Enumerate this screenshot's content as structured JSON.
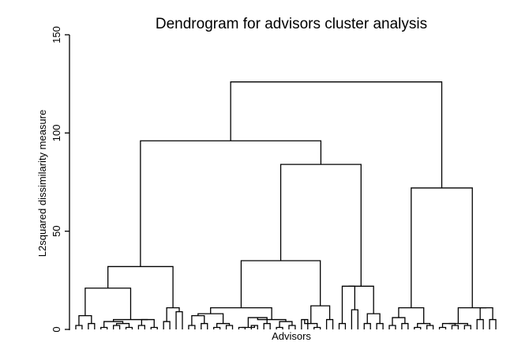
{
  "chart_data": {
    "type": "dendrogram",
    "title": "Dendrogram for advisors cluster analysis",
    "xlabel": "Advisors",
    "ylabel": "L2squared dissimilarity measure",
    "ylim": [
      0,
      150
    ],
    "yticks": [
      0,
      50,
      100,
      150
    ],
    "grid": false,
    "leaf_count": 68,
    "merges": [
      {
        "id": "a1",
        "children": [
          "L0",
          "L1"
        ],
        "height": 2
      },
      {
        "id": "a2",
        "children": [
          "L2",
          "L3"
        ],
        "height": 3
      },
      {
        "id": "a3",
        "children": [
          "a1",
          "a2"
        ],
        "height": 7
      },
      {
        "id": "b1",
        "children": [
          "L4",
          "L5"
        ],
        "height": 1
      },
      {
        "id": "b2",
        "children": [
          "L6",
          "L7"
        ],
        "height": 2
      },
      {
        "id": "b3",
        "children": [
          "L8",
          "L9"
        ],
        "height": 1
      },
      {
        "id": "b4",
        "children": [
          "b2",
          "b3"
        ],
        "height": 3
      },
      {
        "id": "b5",
        "children": [
          "b1",
          "b4"
        ],
        "height": 4
      },
      {
        "id": "c1",
        "children": [
          "L10",
          "L11"
        ],
        "height": 2
      },
      {
        "id": "c2",
        "children": [
          "L12",
          "L13"
        ],
        "height": 1
      },
      {
        "id": "c3",
        "children": [
          "c1",
          "c2"
        ],
        "height": 5
      },
      {
        "id": "d1",
        "children": [
          "b5",
          "c3"
        ],
        "height": 5
      },
      {
        "id": "e1",
        "children": [
          "L14",
          "L15"
        ],
        "height": 4
      },
      {
        "id": "e2",
        "children": [
          "L16",
          "L17"
        ],
        "height": 9
      },
      {
        "id": "e3",
        "children": [
          "e1",
          "e2"
        ],
        "height": 11
      },
      {
        "id": "f1",
        "children": [
          "a3",
          "d1"
        ],
        "height": 21
      },
      {
        "id": "f2",
        "children": [
          "f1",
          "e3"
        ],
        "height": 32
      },
      {
        "id": "g1",
        "children": [
          "L18",
          "L19"
        ],
        "height": 2
      },
      {
        "id": "g2",
        "children": [
          "L20",
          "L21"
        ],
        "height": 3
      },
      {
        "id": "g3",
        "children": [
          "g1",
          "g2"
        ],
        "height": 7
      },
      {
        "id": "g4",
        "children": [
          "L22",
          "L23"
        ],
        "height": 1
      },
      {
        "id": "g5",
        "children": [
          "L24",
          "L25"
        ],
        "height": 2
      },
      {
        "id": "g6",
        "children": [
          "g4",
          "g5"
        ],
        "height": 3
      },
      {
        "id": "g7",
        "children": [
          "g3",
          "g6"
        ],
        "height": 8
      },
      {
        "id": "h1",
        "children": [
          "L26",
          "L27"
        ],
        "height": 1
      },
      {
        "id": "h2",
        "children": [
          "L28",
          "L29"
        ],
        "height": 2
      },
      {
        "id": "h3",
        "children": [
          "h1",
          "h2"
        ],
        "height": 1
      },
      {
        "id": "h4",
        "children": [
          "L30",
          "L31"
        ],
        "height": 3
      },
      {
        "id": "h5",
        "children": [
          "h3",
          "h4"
        ],
        "height": 6
      },
      {
        "id": "i1",
        "children": [
          "L32",
          "L33"
        ],
        "height": 1
      },
      {
        "id": "i2",
        "children": [
          "L34",
          "L35"
        ],
        "height": 2
      },
      {
        "id": "i3",
        "children": [
          "i1",
          "i2"
        ],
        "height": 4
      },
      {
        "id": "i4",
        "children": [
          "h5",
          "i3"
        ],
        "height": 5
      },
      {
        "id": "j1",
        "children": [
          "g7",
          "i4"
        ],
        "height": 11
      },
      {
        "id": "k1",
        "children": [
          "L36",
          "L37"
        ],
        "height": 5
      },
      {
        "id": "k2",
        "children": [
          "L38",
          "L39"
        ],
        "height": 1
      },
      {
        "id": "k3",
        "children": [
          "k1",
          "k2"
        ],
        "height": 3
      },
      {
        "id": "k4",
        "children": [
          "L40",
          "L41"
        ],
        "height": 5
      },
      {
        "id": "k5",
        "children": [
          "k3",
          "k4"
        ],
        "height": 12
      },
      {
        "id": "m1",
        "children": [
          "j1",
          "k5"
        ],
        "height": 35
      },
      {
        "id": "n1",
        "children": [
          "L42",
          "L43"
        ],
        "height": 3
      },
      {
        "id": "n2",
        "children": [
          "L44",
          "L45"
        ],
        "height": 10
      },
      {
        "id": "n3",
        "children": [
          "n1",
          "n2"
        ],
        "height": 22
      },
      {
        "id": "n4",
        "children": [
          "L46",
          "L47"
        ],
        "height": 3
      },
      {
        "id": "n5",
        "children": [
          "L48",
          "L49"
        ],
        "height": 3
      },
      {
        "id": "n6",
        "children": [
          "n4",
          "n5"
        ],
        "height": 8
      },
      {
        "id": "n7",
        "children": [
          "n3",
          "n6"
        ],
        "height": 22
      },
      {
        "id": "p1",
        "children": [
          "m1",
          "n7"
        ],
        "height": 84
      },
      {
        "id": "q1",
        "children": [
          "f2",
          "p1"
        ],
        "height": 96
      },
      {
        "id": "r1",
        "children": [
          "L50",
          "L51"
        ],
        "height": 2
      },
      {
        "id": "r2",
        "children": [
          "L52",
          "L53"
        ],
        "height": 3
      },
      {
        "id": "r3",
        "children": [
          "r1",
          "r2"
        ],
        "height": 6
      },
      {
        "id": "r4",
        "children": [
          "L54",
          "L55"
        ],
        "height": 1
      },
      {
        "id": "r5",
        "children": [
          "L56",
          "L57"
        ],
        "height": 2
      },
      {
        "id": "r6",
        "children": [
          "r4",
          "r5"
        ],
        "height": 3
      },
      {
        "id": "r7",
        "children": [
          "r3",
          "r6"
        ],
        "height": 11
      },
      {
        "id": "s1",
        "children": [
          "L58",
          "L59"
        ],
        "height": 1
      },
      {
        "id": "s2",
        "children": [
          "L60",
          "L61"
        ],
        "height": 2
      },
      {
        "id": "s3",
        "children": [
          "s1",
          "s2"
        ],
        "height": 3
      },
      {
        "id": "s4",
        "children": [
          "L62",
          "L63"
        ],
        "height": 2
      },
      {
        "id": "s5",
        "children": [
          "s3",
          "s4"
        ],
        "height": 3
      },
      {
        "id": "t1",
        "children": [
          "L64",
          "L65"
        ],
        "height": 5
      },
      {
        "id": "t2",
        "children": [
          "L66",
          "L67"
        ],
        "height": 5
      },
      {
        "id": "t3",
        "children": [
          "t1",
          "t2"
        ],
        "height": 11
      },
      {
        "id": "u1",
        "children": [
          "s5",
          "t3"
        ],
        "height": 11
      },
      {
        "id": "u2",
        "children": [
          "r7",
          "u1"
        ],
        "height": 72
      },
      {
        "id": "root",
        "children": [
          "q1",
          "u2"
        ],
        "height": 126
      }
    ]
  }
}
